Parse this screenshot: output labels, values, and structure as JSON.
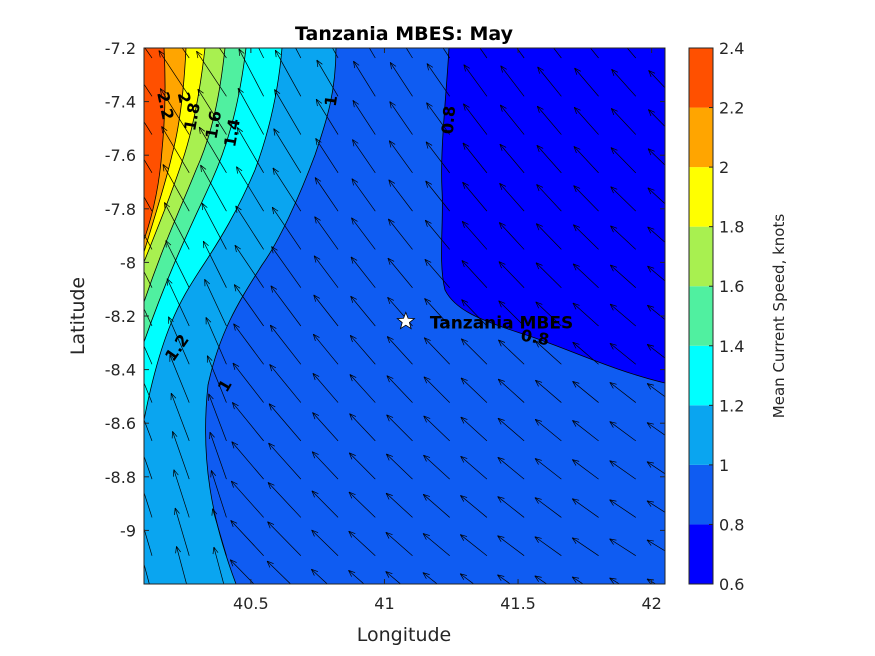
{
  "chart_data": {
    "type": "contourf-quiver",
    "title": "Tanzania MBES: May",
    "xlabel": "Longitude",
    "ylabel": "Latitude",
    "xlim": [
      40.1,
      42.05
    ],
    "ylim": [
      -9.2,
      -7.2
    ],
    "xticks": [
      40.5,
      41,
      41.5,
      42
    ],
    "xtick_labels": [
      "40.5",
      "41",
      "41.5",
      "42"
    ],
    "yticks": [
      -7.2,
      -7.4,
      -7.6,
      -7.8,
      -8,
      -8.2,
      -8.4,
      -8.6,
      -8.8,
      -9
    ],
    "ytick_labels": [
      "-7.2",
      "-7.4",
      "-7.6",
      "-7.8",
      "-8",
      "-8.2",
      "-8.4",
      "-8.6",
      "-8.8",
      "-9"
    ],
    "colorbar": {
      "label": "Mean Current Speed, knots",
      "levels": [
        0.6,
        0.8,
        1,
        1.2,
        1.4,
        1.6,
        1.8,
        2,
        2.2,
        2.4
      ],
      "level_labels": [
        "0.6",
        "0.8",
        "1",
        "1.2",
        "1.4",
        "1.6",
        "1.8",
        "2",
        "2.2",
        "2.4"
      ],
      "colors": [
        "#0000ff",
        "#0f5cf2",
        "#0aa5f0",
        "#00ffff",
        "#50f0a0",
        "#a8f050",
        "#ffff00",
        "#ffa500",
        "#ff5000"
      ]
    },
    "contour_labels": [
      {
        "text": "2.2",
        "lon": 40.16,
        "lat": -7.42
      },
      {
        "text": "2",
        "lon": 40.23,
        "lat": -7.39
      },
      {
        "text": "1.8",
        "lon": 40.3,
        "lat": -7.46
      },
      {
        "text": "1.6",
        "lon": 40.38,
        "lat": -7.49
      },
      {
        "text": "1.4",
        "lon": 40.45,
        "lat": -7.52
      },
      {
        "text": "1",
        "lon": 40.82,
        "lat": -7.4
      },
      {
        "text": "0.8",
        "lon": 41.26,
        "lat": -7.47
      },
      {
        "text": "1.2",
        "lon": 40.24,
        "lat": -8.33
      },
      {
        "text": "1",
        "lon": 40.42,
        "lat": -8.47
      },
      {
        "text": "0.8",
        "lon": 41.56,
        "lat": -8.3
      }
    ],
    "site": {
      "name": "Tanzania MBES",
      "lon": 41.08,
      "lat": -8.22
    },
    "grid": false
  }
}
